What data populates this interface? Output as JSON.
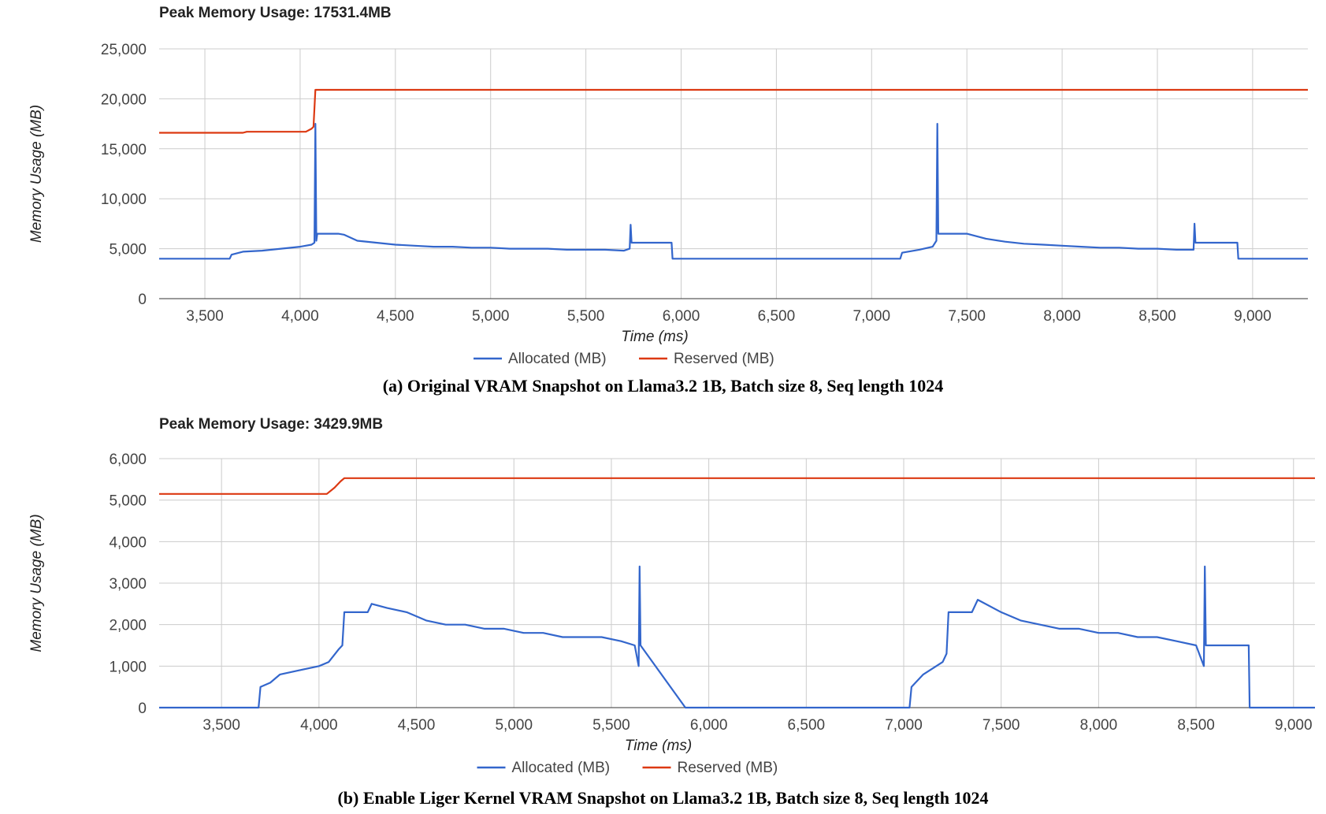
{
  "chart_data": [
    {
      "type": "line",
      "peak_label": "Peak Memory Usage: 17531.4MB",
      "caption": "(a) Original VRAM Snapshot on Llama3.2 1B, Batch size 8, Seq length 1024",
      "xlabel": "Time (ms)",
      "ylabel": "Memory Usage (MB)",
      "xlim": [
        3260,
        9290
      ],
      "ylim": [
        0,
        25000
      ],
      "x_ticks": [
        "3,500",
        "4,000",
        "4,500",
        "5,000",
        "5,500",
        "6,000",
        "6,500",
        "7,000",
        "7,500",
        "8,000",
        "8,500",
        "9,000"
      ],
      "y_ticks": [
        "0",
        "5,000",
        "10,000",
        "15,000",
        "20,000",
        "25,000"
      ],
      "grid": true,
      "legend_position": "bottom",
      "series": [
        {
          "name": "Allocated (MB)",
          "color": "#3366cc",
          "points": [
            [
              3260,
              4000
            ],
            [
              3630,
              4000
            ],
            [
              3640,
              4400
            ],
            [
              3700,
              4700
            ],
            [
              3800,
              4800
            ],
            [
              3900,
              5000
            ],
            [
              4000,
              5200
            ],
            [
              4060,
              5400
            ],
            [
              4075,
              5600
            ],
            [
              4080,
              17500
            ],
            [
              4085,
              5800
            ],
            [
              4090,
              6500
            ],
            [
              4200,
              6500
            ],
            [
              4230,
              6400
            ],
            [
              4300,
              5800
            ],
            [
              4400,
              5600
            ],
            [
              4500,
              5400
            ],
            [
              4600,
              5300
            ],
            [
              4700,
              5200
            ],
            [
              4800,
              5200
            ],
            [
              4900,
              5100
            ],
            [
              5000,
              5100
            ],
            [
              5100,
              5000
            ],
            [
              5200,
              5000
            ],
            [
              5300,
              5000
            ],
            [
              5400,
              4900
            ],
            [
              5500,
              4900
            ],
            [
              5600,
              4900
            ],
            [
              5700,
              4800
            ],
            [
              5730,
              5000
            ],
            [
              5735,
              7400
            ],
            [
              5740,
              5600
            ],
            [
              5950,
              5600
            ],
            [
              5955,
              4000
            ],
            [
              7150,
              4000
            ],
            [
              7160,
              4600
            ],
            [
              7250,
              4900
            ],
            [
              7320,
              5200
            ],
            [
              7340,
              5800
            ],
            [
              7345,
              17500
            ],
            [
              7350,
              6500
            ],
            [
              7500,
              6500
            ],
            [
              7600,
              6000
            ],
            [
              7700,
              5700
            ],
            [
              7800,
              5500
            ],
            [
              7900,
              5400
            ],
            [
              8000,
              5300
            ],
            [
              8100,
              5200
            ],
            [
              8200,
              5100
            ],
            [
              8300,
              5100
            ],
            [
              8400,
              5000
            ],
            [
              8500,
              5000
            ],
            [
              8600,
              4900
            ],
            [
              8690,
              4900
            ],
            [
              8695,
              7500
            ],
            [
              8700,
              5600
            ],
            [
              8920,
              5600
            ],
            [
              8925,
              4000
            ],
            [
              9290,
              4000
            ]
          ]
        },
        {
          "name": "Reserved (MB)",
          "color": "#dc3912",
          "points": [
            [
              3260,
              16600
            ],
            [
              3700,
              16600
            ],
            [
              3720,
              16700
            ],
            [
              4030,
              16700
            ],
            [
              4060,
              17000
            ],
            [
              4070,
              17200
            ],
            [
              4080,
              20900
            ],
            [
              9290,
              20900
            ]
          ]
        }
      ]
    },
    {
      "type": "line",
      "peak_label": "Peak Memory Usage: 3429.9MB",
      "caption": "(b) Enable Liger Kernel VRAM Snapshot on Llama3.2 1B, Batch size 8, Seq length 1024",
      "xlabel": "Time (ms)",
      "ylabel": "Memory Usage (MB)",
      "xlim": [
        3180,
        9110
      ],
      "ylim": [
        0,
        6000
      ],
      "x_ticks": [
        "3,500",
        "4,000",
        "4,500",
        "5,000",
        "5,500",
        "6,000",
        "6,500",
        "7,000",
        "7,500",
        "8,000",
        "8,500",
        "9,000"
      ],
      "y_ticks": [
        "0",
        "1,000",
        "2,000",
        "3,000",
        "4,000",
        "5,000",
        "6,000"
      ],
      "grid": true,
      "legend_position": "bottom",
      "series": [
        {
          "name": "Allocated (MB)",
          "color": "#3366cc",
          "points": [
            [
              3180,
              0
            ],
            [
              3690,
              0
            ],
            [
              3700,
              500
            ],
            [
              3750,
              600
            ],
            [
              3800,
              800
            ],
            [
              3900,
              900
            ],
            [
              4000,
              1000
            ],
            [
              4050,
              1100
            ],
            [
              4100,
              1400
            ],
            [
              4120,
              1500
            ],
            [
              4130,
              2300
            ],
            [
              4250,
              2300
            ],
            [
              4270,
              2500
            ],
            [
              4350,
              2400
            ],
            [
              4450,
              2300
            ],
            [
              4550,
              2100
            ],
            [
              4650,
              2000
            ],
            [
              4750,
              2000
            ],
            [
              4850,
              1900
            ],
            [
              4950,
              1900
            ],
            [
              5050,
              1800
            ],
            [
              5150,
              1800
            ],
            [
              5250,
              1700
            ],
            [
              5350,
              1700
            ],
            [
              5450,
              1700
            ],
            [
              5550,
              1600
            ],
            [
              5620,
              1500
            ],
            [
              5640,
              1000
            ],
            [
              5645,
              3400
            ],
            [
              5650,
              1500
            ],
            [
              5880,
              0
            ],
            [
              7030,
              0
            ],
            [
              7040,
              500
            ],
            [
              7100,
              800
            ],
            [
              7200,
              1100
            ],
            [
              7220,
              1300
            ],
            [
              7230,
              2300
            ],
            [
              7350,
              2300
            ],
            [
              7380,
              2600
            ],
            [
              7500,
              2300
            ],
            [
              7600,
              2100
            ],
            [
              7700,
              2000
            ],
            [
              7800,
              1900
            ],
            [
              7900,
              1900
            ],
            [
              8000,
              1800
            ],
            [
              8100,
              1800
            ],
            [
              8200,
              1700
            ],
            [
              8300,
              1700
            ],
            [
              8400,
              1600
            ],
            [
              8500,
              1500
            ],
            [
              8540,
              1000
            ],
            [
              8545,
              3400
            ],
            [
              8550,
              1500
            ],
            [
              8770,
              1500
            ],
            [
              8775,
              0
            ],
            [
              9110,
              0
            ]
          ]
        },
        {
          "name": "Reserved (MB)",
          "color": "#dc3912",
          "points": [
            [
              3180,
              5150
            ],
            [
              4040,
              5150
            ],
            [
              4080,
              5300
            ],
            [
              4110,
              5450
            ],
            [
              4130,
              5530
            ],
            [
              9110,
              5530
            ]
          ]
        }
      ]
    }
  ]
}
